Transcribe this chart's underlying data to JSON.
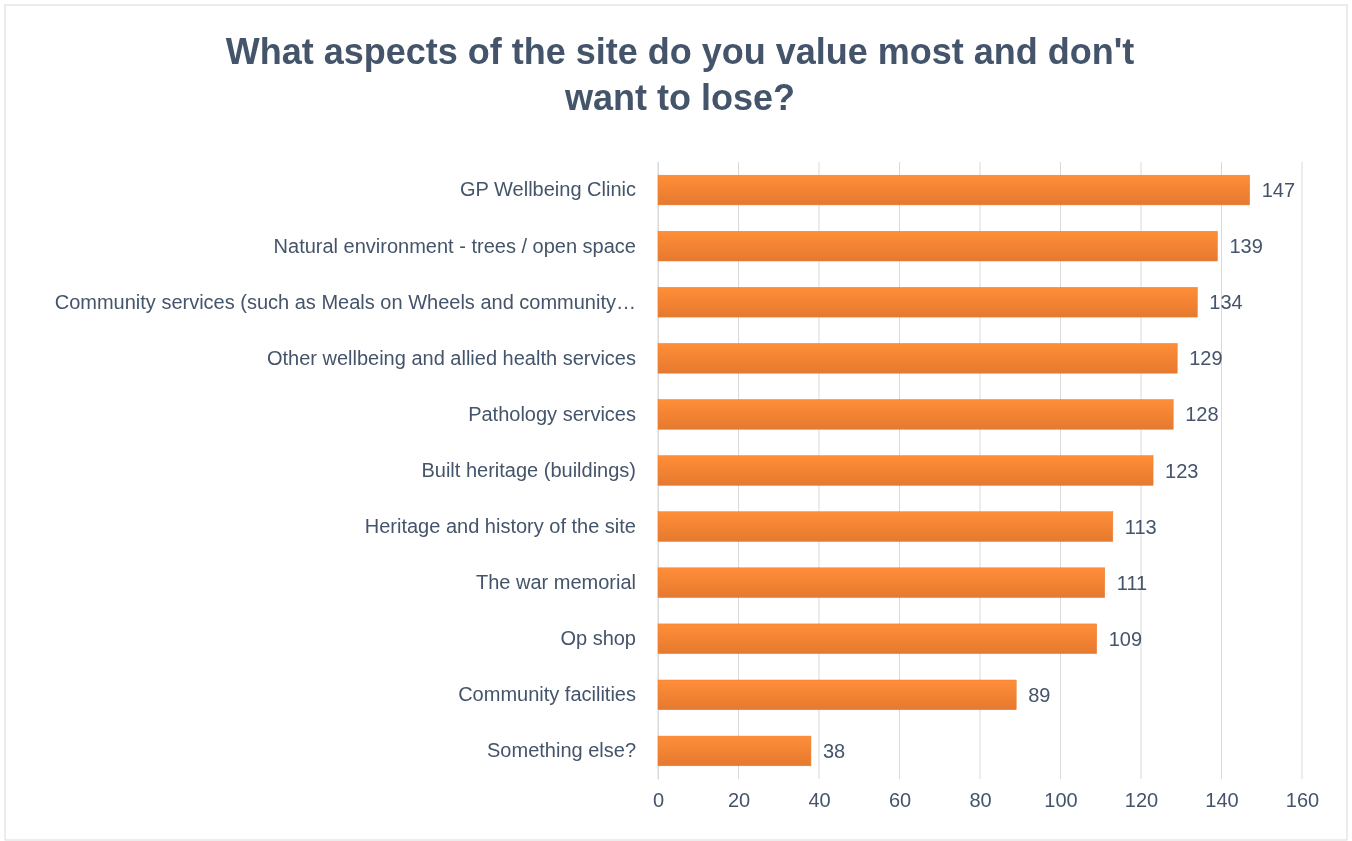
{
  "chart_data": {
    "type": "bar",
    "orientation": "horizontal",
    "title": "What aspects of the site do you value most and don't want to lose?",
    "categories": [
      "GP Wellbeing Clinic",
      "Natural environment - trees / open space",
      "Community services (such as Meals on Wheels and community…",
      "Other wellbeing and allied health services",
      "Pathology services",
      "Built heritage (buildings)",
      "Heritage and history of the site",
      "The war memorial",
      "Op shop",
      "Community facilities",
      "Something else?"
    ],
    "values": [
      147,
      139,
      134,
      129,
      128,
      123,
      113,
      111,
      109,
      89,
      38
    ],
    "color": "#ed7d31",
    "xlim": [
      0,
      160
    ],
    "xticks": [
      0,
      20,
      40,
      60,
      80,
      100,
      120,
      140,
      160
    ],
    "grid": "x",
    "data_labels": true
  }
}
